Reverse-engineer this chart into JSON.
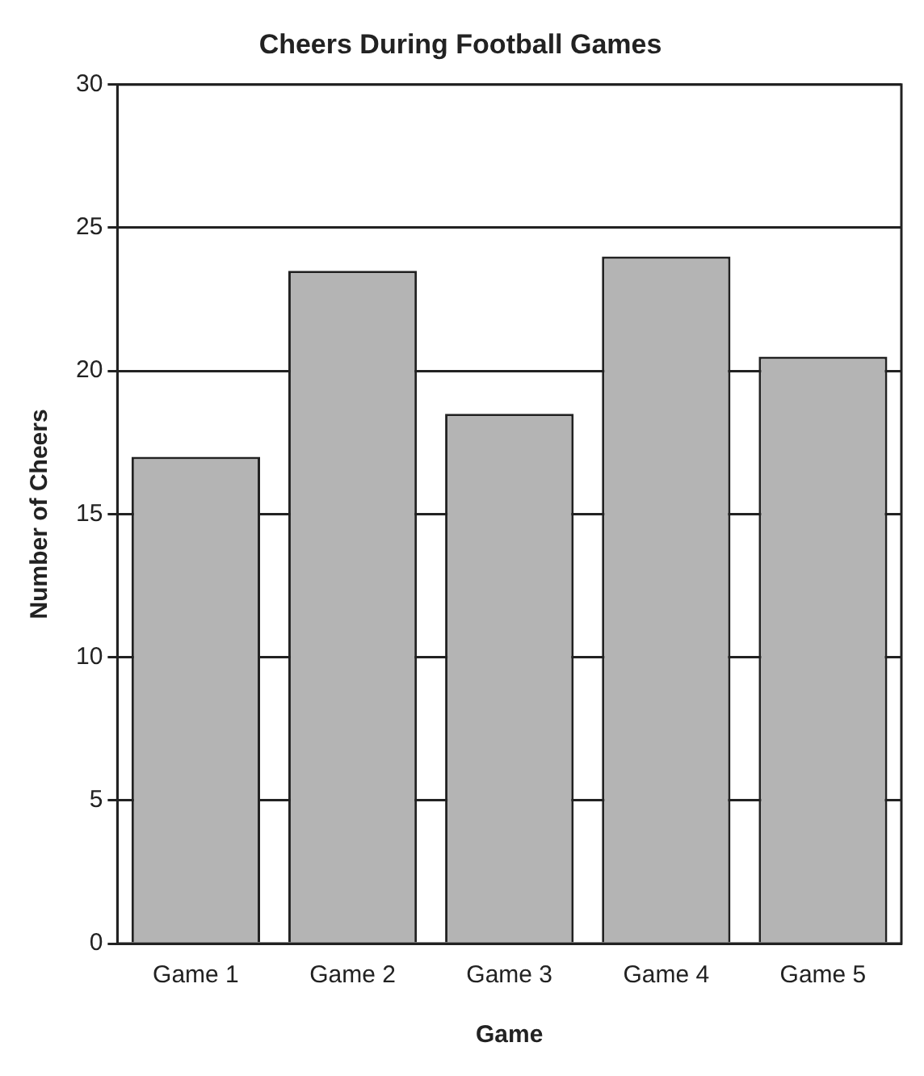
{
  "chart_data": {
    "type": "bar",
    "title": "Cheers During Football Games",
    "xlabel": "Game",
    "ylabel": "Number of Cheers",
    "categories": [
      "Game 1",
      "Game 2",
      "Game 3",
      "Game 4",
      "Game 5"
    ],
    "values": [
      17,
      23.5,
      18.5,
      24,
      20.5
    ],
    "color": "#b4b4b4",
    "ylim": [
      0,
      30
    ],
    "yticks": [
      0,
      5,
      10,
      15,
      20,
      25,
      30
    ],
    "grid": "y",
    "legend": false
  }
}
